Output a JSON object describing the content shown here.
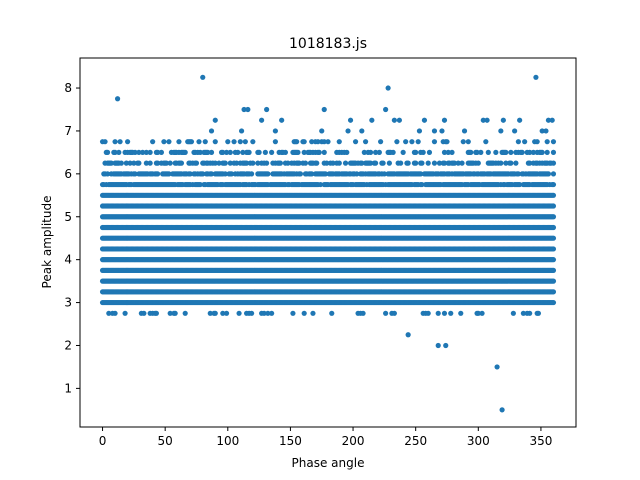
{
  "chart_data": {
    "type": "scatter",
    "title": "1018183.js",
    "xlabel": "Phase angle",
    "ylabel": "Peak amplitude",
    "xlim": [
      -18,
      378
    ],
    "ylim": [
      0.1,
      8.7
    ],
    "xticks": [
      0,
      50,
      100,
      150,
      200,
      250,
      300,
      350
    ],
    "yticks": [
      1,
      2,
      3,
      4,
      5,
      6,
      7,
      8
    ],
    "grid": false,
    "legend": "none",
    "marker_color": "#1f77b4",
    "dense_band": {
      "description_levels": [
        2.75,
        3.0,
        3.25,
        3.5,
        3.75,
        4.0,
        4.25,
        4.5,
        4.75,
        5.0,
        5.25,
        5.5
      ],
      "x_range": [
        0,
        360
      ]
    },
    "series": [
      {
        "levels": [
          {
            "y": 5.75,
            "x_density": 0.9
          },
          {
            "y": 6.0,
            "x_density": 0.7
          },
          {
            "y": 6.25,
            "x_density": 0.45
          },
          {
            "y": 6.5,
            "x_density": 0.3
          },
          {
            "y": 6.75,
            "x_density": 0.12
          }
        ]
      }
    ],
    "outliers": [
      {
        "x": 0,
        "y": 6.75
      },
      {
        "x": 2,
        "y": 6.75
      },
      {
        "x": 10,
        "y": 6.75
      },
      {
        "x": 12,
        "y": 7.75
      },
      {
        "x": 80,
        "y": 8.25
      },
      {
        "x": 87,
        "y": 7.0
      },
      {
        "x": 90,
        "y": 7.25
      },
      {
        "x": 111,
        "y": 7.0
      },
      {
        "x": 113,
        "y": 7.5
      },
      {
        "x": 116,
        "y": 7.5
      },
      {
        "x": 127,
        "y": 7.25
      },
      {
        "x": 131,
        "y": 7.5
      },
      {
        "x": 138,
        "y": 7.0
      },
      {
        "x": 143,
        "y": 7.25
      },
      {
        "x": 175,
        "y": 7.0
      },
      {
        "x": 177,
        "y": 7.5
      },
      {
        "x": 196,
        "y": 7.0
      },
      {
        "x": 198,
        "y": 7.25
      },
      {
        "x": 207,
        "y": 7.0
      },
      {
        "x": 215,
        "y": 7.25
      },
      {
        "x": 226,
        "y": 7.5
      },
      {
        "x": 228,
        "y": 8.0
      },
      {
        "x": 233,
        "y": 7.25
      },
      {
        "x": 237,
        "y": 7.25
      },
      {
        "x": 253,
        "y": 7.0
      },
      {
        "x": 257,
        "y": 7.25
      },
      {
        "x": 265,
        "y": 7.0
      },
      {
        "x": 271,
        "y": 7.0
      },
      {
        "x": 273,
        "y": 7.25
      },
      {
        "x": 289,
        "y": 7.0
      },
      {
        "x": 304,
        "y": 7.25
      },
      {
        "x": 307,
        "y": 7.25
      },
      {
        "x": 318,
        "y": 7.0
      },
      {
        "x": 320,
        "y": 7.25
      },
      {
        "x": 329,
        "y": 7.0
      },
      {
        "x": 333,
        "y": 7.25
      },
      {
        "x": 346,
        "y": 8.25
      },
      {
        "x": 351,
        "y": 7.0
      },
      {
        "x": 354,
        "y": 7.0
      },
      {
        "x": 356,
        "y": 7.25
      },
      {
        "x": 359,
        "y": 7.25
      },
      {
        "x": 244,
        "y": 2.25
      },
      {
        "x": 268,
        "y": 2.0
      },
      {
        "x": 274,
        "y": 2.0
      },
      {
        "x": 315,
        "y": 1.5
      },
      {
        "x": 319,
        "y": 0.5
      }
    ]
  }
}
